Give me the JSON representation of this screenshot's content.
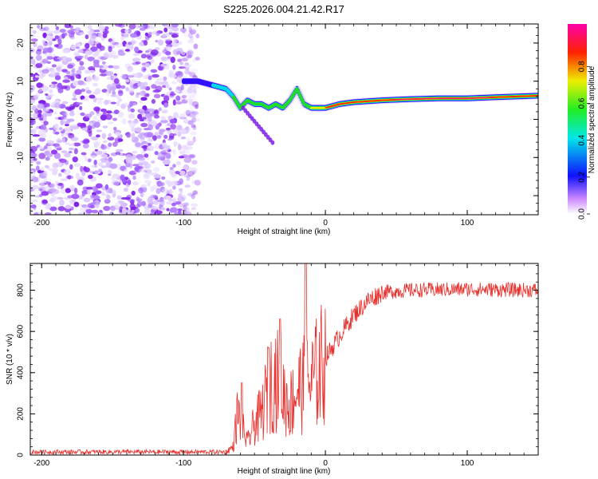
{
  "title": "S225.2026.004.21.42.R17",
  "chart_data": [
    {
      "type": "heatmap",
      "xlabel": "Height of straight line (km)",
      "ylabel": "Frequency (Hz)",
      "xlim": [
        -208,
        150
      ],
      "ylim": [
        -25,
        25
      ],
      "xticks": [
        -200,
        -100,
        0,
        100
      ],
      "yticks": [
        -20,
        -10,
        0,
        10,
        20
      ],
      "colorbar": {
        "label": "Normalized spectral amplitude",
        "range": [
          0,
          1
        ],
        "ticks": [
          "0.0",
          "0.2",
          "0.4",
          "0.6",
          "0.8"
        ]
      },
      "ridge": {
        "description_points_height_km": [
          -100,
          -90,
          -80,
          -70,
          -65,
          -60,
          -55,
          -50,
          -45,
          -40,
          -35,
          -30,
          -25,
          -20,
          -15,
          -10,
          -5,
          0,
          10,
          20,
          40,
          60,
          80,
          100,
          120,
          150
        ],
        "frequency_hz": [
          10,
          10,
          9,
          8,
          6,
          3,
          5,
          4,
          4,
          3,
          4,
          3,
          5,
          8,
          4,
          3,
          3,
          3,
          4,
          4.5,
          5,
          5.3,
          5.5,
          5.5,
          5.8,
          6.2
        ],
        "amplitude": [
          0.3,
          0.35,
          0.4,
          0.45,
          0.5,
          0.55,
          0.5,
          0.55,
          0.5,
          0.55,
          0.5,
          0.55,
          0.5,
          0.6,
          0.55,
          0.6,
          0.65,
          0.75,
          0.8,
          0.85,
          0.9,
          0.95,
          1.0,
          1.0,
          0.9,
          0.8
        ]
      },
      "noise_region_km": [
        -208,
        -80
      ]
    },
    {
      "type": "line",
      "xlabel": "Height of straight line (km)",
      "ylabel": "SNR (10 * v/v)",
      "xlim": [
        -208,
        150
      ],
      "ylim": [
        0,
        930
      ],
      "xticks": [
        -200,
        -100,
        0,
        100
      ],
      "yticks": [
        0,
        200,
        400,
        600,
        800
      ],
      "series_color": "#e8312e",
      "trend": {
        "x": [
          -208,
          -70,
          -65,
          -62,
          -55,
          -50,
          -45,
          -40,
          -35,
          -30,
          -25,
          -20,
          -15,
          -10,
          0,
          10,
          20,
          30,
          40,
          60,
          100,
          150
        ],
        "y": [
          15,
          15,
          40,
          200,
          60,
          150,
          200,
          330,
          380,
          300,
          240,
          320,
          340,
          350,
          470,
          580,
          680,
          750,
          790,
          800,
          805,
          800
        ]
      },
      "peaks": [
        {
          "x": -59,
          "y": 350
        },
        {
          "x": -40,
          "y": 520
        },
        {
          "x": -32,
          "y": 660
        },
        {
          "x": -14,
          "y": 930
        }
      ]
    }
  ]
}
